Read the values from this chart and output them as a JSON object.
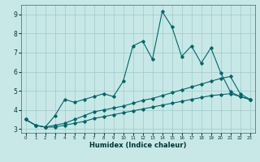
{
  "title": "",
  "xlabel": "Humidex (Indice chaleur)",
  "ylabel": "",
  "background_color": "#c8e8e8",
  "grid_color": "#a0c8c8",
  "line_color": "#006666",
  "xlim": [
    -0.5,
    23.5
  ],
  "ylim": [
    2.8,
    9.5
  ],
  "xticks": [
    0,
    1,
    2,
    3,
    4,
    5,
    6,
    7,
    8,
    9,
    10,
    11,
    12,
    13,
    14,
    15,
    16,
    17,
    18,
    19,
    20,
    21,
    22,
    23
  ],
  "yticks": [
    3,
    4,
    5,
    6,
    7,
    8,
    9
  ],
  "line1_x": [
    0,
    1,
    2,
    3,
    4,
    5,
    6,
    7,
    8,
    9,
    10,
    11,
    12,
    13,
    14,
    15,
    16,
    17,
    18,
    19,
    20,
    21,
    22,
    23
  ],
  "line1_y": [
    3.5,
    3.2,
    3.1,
    3.7,
    4.55,
    4.4,
    4.55,
    4.7,
    4.85,
    4.7,
    5.5,
    7.35,
    7.6,
    6.65,
    9.15,
    8.35,
    6.8,
    7.35,
    6.45,
    7.25,
    5.95,
    4.95,
    4.7,
    4.55
  ],
  "line2_x": [
    0,
    1,
    2,
    3,
    4,
    5,
    6,
    7,
    8,
    9,
    10,
    11,
    12,
    13,
    14,
    15,
    16,
    17,
    18,
    19,
    20,
    21,
    22,
    23
  ],
  "line2_y": [
    3.5,
    3.2,
    3.1,
    3.2,
    3.3,
    3.5,
    3.7,
    3.9,
    4.0,
    4.1,
    4.2,
    4.35,
    4.5,
    4.6,
    4.75,
    4.9,
    5.05,
    5.2,
    5.35,
    5.5,
    5.65,
    5.75,
    4.85,
    4.55
  ],
  "line3_x": [
    0,
    1,
    2,
    3,
    4,
    5,
    6,
    7,
    8,
    9,
    10,
    11,
    12,
    13,
    14,
    15,
    16,
    17,
    18,
    19,
    20,
    21,
    22,
    23
  ],
  "line3_y": [
    3.5,
    3.2,
    3.1,
    3.1,
    3.2,
    3.3,
    3.4,
    3.55,
    3.65,
    3.75,
    3.85,
    3.95,
    4.05,
    4.15,
    4.25,
    4.35,
    4.45,
    4.55,
    4.65,
    4.75,
    4.8,
    4.85,
    4.7,
    4.55
  ]
}
